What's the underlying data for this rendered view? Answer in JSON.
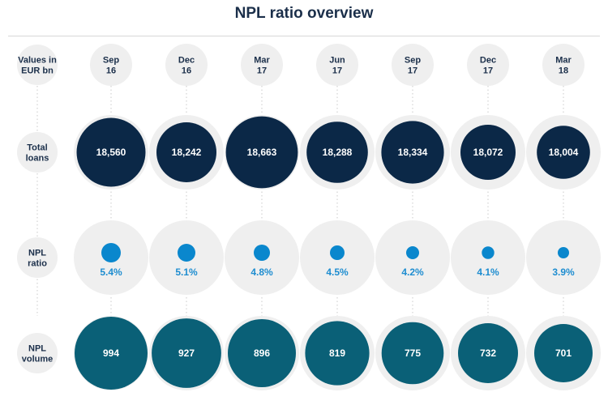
{
  "chart_data": {
    "type": "bubble-grid",
    "title": "NPL ratio overview",
    "row_labels": [
      [
        "Values in",
        "EUR bn"
      ],
      [
        "Total",
        "loans"
      ],
      [
        "NPL",
        "ratio"
      ],
      [
        "NPL",
        "volume"
      ]
    ],
    "columns": [
      [
        "Sep",
        "16"
      ],
      [
        "Dec",
        "16"
      ],
      [
        "Mar",
        "17"
      ],
      [
        "Jun",
        "17"
      ],
      [
        "Sep",
        "17"
      ],
      [
        "Dec",
        "17"
      ],
      [
        "Mar",
        "18"
      ]
    ],
    "series": [
      {
        "name": "Total loans",
        "values": [
          18560,
          18242,
          18663,
          18288,
          18334,
          18072,
          18004
        ],
        "labels": [
          "18,560",
          "18,242",
          "18,663",
          "18,288",
          "18,334",
          "18,072",
          "18,004"
        ]
      },
      {
        "name": "NPL ratio",
        "values": [
          5.4,
          5.1,
          4.8,
          4.5,
          4.2,
          4.1,
          3.9
        ],
        "labels": [
          "5.4%",
          "5.1%",
          "4.8%",
          "4.5%",
          "4.2%",
          "4.1%",
          "3.9%"
        ]
      },
      {
        "name": "NPL volume",
        "values": [
          994,
          927,
          896,
          819,
          775,
          732,
          701
        ],
        "labels": [
          "994",
          "927",
          "896",
          "819",
          "775",
          "732",
          "701"
        ]
      }
    ],
    "colors": {
      "total_loans": "#0b2847",
      "npl_ratio": "#0a87cd",
      "npl_ratio_text": "#1e8dd0",
      "npl_volume": "#0a6077",
      "background_circle": "#efefef",
      "title": "#1b2f4a"
    }
  }
}
